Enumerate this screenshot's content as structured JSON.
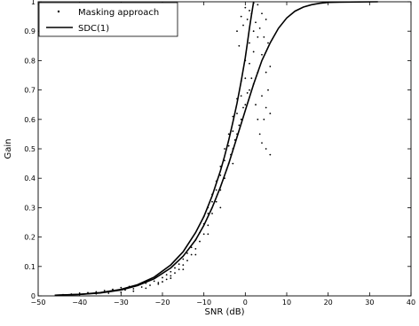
{
  "chart_data": {
    "type": "scatter",
    "title": "",
    "xlabel": "SNR (dB)",
    "ylabel": "Gain",
    "xlim": [
      -50,
      40
    ],
    "ylim": [
      0,
      1
    ],
    "xticks": [
      -50,
      -40,
      -30,
      -20,
      -10,
      0,
      10,
      20,
      30,
      40
    ],
    "xtick_labels": [
      "−50",
      "−40",
      "−30",
      "−20",
      "−10",
      "0",
      "10",
      "20",
      "30",
      "40"
    ],
    "yticks": [
      0,
      0.1,
      0.2,
      0.3,
      0.4,
      0.5,
      0.6,
      0.7,
      0.8,
      0.9,
      1
    ],
    "ytick_labels": [
      "0",
      "0.1",
      "0.2",
      "0.3",
      "0.4",
      "0.5",
      "0.6",
      "0.7",
      "0.8",
      "0.9",
      "1"
    ],
    "grid": false,
    "legend": {
      "placement": "top-left",
      "entries": [
        {
          "label": "Masking approach",
          "marker": "dot"
        },
        {
          "label": "SDC(1)",
          "marker": "line"
        }
      ]
    },
    "series": [
      {
        "name": "Masking approach",
        "kind": "scatter",
        "color": "#000000",
        "points": [
          [
            -44,
            0.004
          ],
          [
            -42,
            0.006
          ],
          [
            -40,
            0.009
          ],
          [
            -38,
            0.011
          ],
          [
            -36,
            0.014
          ],
          [
            -34,
            0.018
          ],
          [
            -32,
            0.022
          ],
          [
            -30,
            0.028
          ],
          [
            -29,
            0.02
          ],
          [
            -28,
            0.032
          ],
          [
            -27,
            0.024
          ],
          [
            -26,
            0.036
          ],
          [
            -25,
            0.03
          ],
          [
            -24,
            0.043
          ],
          [
            -23,
            0.036
          ],
          [
            -22,
            0.05
          ],
          [
            -21,
            0.045
          ],
          [
            -20,
            0.062
          ],
          [
            -20,
            0.048
          ],
          [
            -19,
            0.056
          ],
          [
            -19,
            0.072
          ],
          [
            -18,
            0.068
          ],
          [
            -18,
            0.082
          ],
          [
            -17,
            0.078
          ],
          [
            -17,
            0.095
          ],
          [
            -16,
            0.09
          ],
          [
            -16,
            0.108
          ],
          [
            -15,
            0.105
          ],
          [
            -15,
            0.125
          ],
          [
            -14,
            0.12
          ],
          [
            -14,
            0.145
          ],
          [
            -13,
            0.14
          ],
          [
            -13,
            0.165
          ],
          [
            -12,
            0.16
          ],
          [
            -12,
            0.19
          ],
          [
            -11,
            0.185
          ],
          [
            -11,
            0.215
          ],
          [
            -10,
            0.21
          ],
          [
            -10,
            0.245
          ],
          [
            -10,
            0.27
          ],
          [
            -9,
            0.24
          ],
          [
            -9,
            0.28
          ],
          [
            -9,
            0.3
          ],
          [
            -8,
            0.28
          ],
          [
            -8,
            0.32
          ],
          [
            -8,
            0.345
          ],
          [
            -7,
            0.32
          ],
          [
            -7,
            0.36
          ],
          [
            -7,
            0.39
          ],
          [
            -6,
            0.36
          ],
          [
            -6,
            0.41
          ],
          [
            -6,
            0.44
          ],
          [
            -5,
            0.4
          ],
          [
            -5,
            0.46
          ],
          [
            -5,
            0.5
          ],
          [
            -4.5,
            0.43
          ],
          [
            -4,
            0.45
          ],
          [
            -4,
            0.51
          ],
          [
            -4,
            0.55
          ],
          [
            -3.5,
            0.48
          ],
          [
            -3,
            0.5
          ],
          [
            -3,
            0.56
          ],
          [
            -3,
            0.61
          ],
          [
            -2.5,
            0.53
          ],
          [
            -2,
            0.55
          ],
          [
            -2,
            0.62
          ],
          [
            -2,
            0.67
          ],
          [
            -1.5,
            0.58
          ],
          [
            -1,
            0.6
          ],
          [
            -1,
            0.68
          ],
          [
            -1,
            0.73
          ],
          [
            -0.5,
            0.64
          ],
          [
            0,
            0.65
          ],
          [
            0,
            0.74
          ],
          [
            0,
            0.8
          ],
          [
            0.5,
            0.69
          ],
          [
            1,
            0.7
          ],
          [
            1,
            0.79
          ],
          [
            1,
            0.86
          ],
          [
            1.5,
            0.74
          ],
          [
            2,
            0.72
          ],
          [
            2,
            0.83
          ],
          [
            2,
            0.9
          ],
          [
            2.5,
            0.65
          ],
          [
            3,
            0.6
          ],
          [
            3,
            0.76
          ],
          [
            3,
            0.88
          ],
          [
            3.5,
            0.55
          ],
          [
            4,
            0.52
          ],
          [
            4,
            0.68
          ],
          [
            4,
            0.82
          ],
          [
            4.5,
            0.6
          ],
          [
            5,
            0.5
          ],
          [
            5,
            0.64
          ],
          [
            5,
            0.76
          ],
          [
            5.5,
            0.7
          ],
          [
            6,
            0.48
          ],
          [
            6,
            0.62
          ],
          [
            6,
            0.78
          ],
          [
            -1,
            0.95
          ],
          [
            0,
            0.98
          ],
          [
            1,
            0.97
          ],
          [
            2,
            0.995
          ],
          [
            3,
            0.99
          ],
          [
            4,
            0.96
          ],
          [
            5,
            0.94
          ],
          [
            -2,
            0.9
          ],
          [
            -1.5,
            0.85
          ],
          [
            -0.5,
            0.92
          ],
          [
            0.5,
            0.94
          ],
          [
            1.5,
            0.96
          ],
          [
            2.5,
            0.93
          ],
          [
            3.5,
            0.91
          ],
          [
            4.5,
            0.88
          ],
          [
            5.5,
            0.86
          ],
          [
            -3,
            0.45
          ],
          [
            -6,
            0.3
          ],
          [
            -9,
            0.21
          ],
          [
            -12,
            0.14
          ],
          [
            -15,
            0.09
          ],
          [
            -18,
            0.06
          ],
          [
            -21,
            0.04
          ],
          [
            -24,
            0.026
          ],
          [
            -27,
            0.016
          ],
          [
            -30,
            0.012
          ],
          [
            -33,
            0.009
          ],
          [
            -36,
            0.007
          ],
          [
            -40,
            0.005
          ]
        ]
      },
      {
        "name": "SDC(1)",
        "kind": "line",
        "color": "#000000",
        "curves": [
          {
            "points": [
              [
                -46,
                0.002
              ],
              [
                -40,
                0.005
              ],
              [
                -35,
                0.01
              ],
              [
                -30,
                0.02
              ],
              [
                -26,
                0.035
              ],
              [
                -22,
                0.058
              ],
              [
                -18,
                0.095
              ],
              [
                -15,
                0.135
              ],
              [
                -12,
                0.19
              ],
              [
                -10,
                0.24
              ],
              [
                -8,
                0.3
              ],
              [
                -6,
                0.37
              ],
              [
                -4,
                0.45
              ],
              [
                -2,
                0.54
              ],
              [
                0,
                0.63
              ],
              [
                2,
                0.72
              ],
              [
                4,
                0.8
              ],
              [
                6,
                0.86
              ],
              [
                8,
                0.91
              ],
              [
                10,
                0.945
              ],
              [
                12,
                0.968
              ],
              [
                14,
                0.982
              ],
              [
                16,
                0.99
              ],
              [
                18,
                0.995
              ],
              [
                20,
                0.998
              ],
              [
                25,
                0.999
              ],
              [
                32,
                1.0
              ]
            ]
          },
          {
            "points": [
              [
                -46,
                0.002
              ],
              [
                -40,
                0.005
              ],
              [
                -35,
                0.011
              ],
              [
                -30,
                0.022
              ],
              [
                -26,
                0.038
              ],
              [
                -22,
                0.064
              ],
              [
                -18,
                0.105
              ],
              [
                -15,
                0.15
              ],
              [
                -12,
                0.215
              ],
              [
                -10,
                0.27
              ],
              [
                -8,
                0.34
              ],
              [
                -6,
                0.425
              ],
              [
                -5,
                0.475
              ],
              [
                -4,
                0.53
              ],
              [
                -3,
                0.59
              ],
              [
                -2,
                0.655
              ],
              [
                -1,
                0.73
              ],
              [
                0,
                0.81
              ],
              [
                0.5,
                0.86
              ],
              [
                1,
                0.91
              ],
              [
                1.5,
                0.955
              ],
              [
                2,
                1.0
              ]
            ]
          }
        ]
      }
    ]
  }
}
